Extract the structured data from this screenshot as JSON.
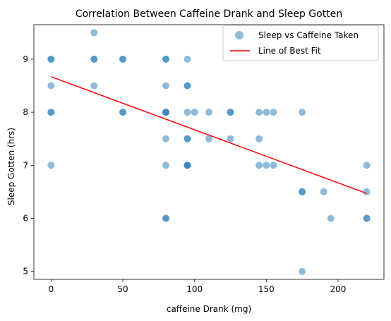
{
  "chart_data": {
    "type": "scatter",
    "title": "Correlation Between Caffeine Drank and Sleep Gotten",
    "xlabel": "caffeine Drank (mg)",
    "ylabel": "Sleep Gotten (hrs)",
    "xlim": [
      -12,
      232
    ],
    "ylim": [
      4.85,
      9.65
    ],
    "xticks": [
      0,
      50,
      100,
      150,
      200
    ],
    "yticks": [
      5,
      6,
      7,
      8,
      9
    ],
    "grid": false,
    "legend_position": "top-right",
    "series": [
      {
        "name": "Sleep vs Caffeine Taken",
        "kind": "scatter",
        "color": "#1f77b4",
        "opacity": 0.5,
        "points": [
          {
            "x": 0,
            "y": 9
          },
          {
            "x": 0,
            "y": 9
          },
          {
            "x": 0,
            "y": 8.5
          },
          {
            "x": 0,
            "y": 8
          },
          {
            "x": 0,
            "y": 8
          },
          {
            "x": 0,
            "y": 7
          },
          {
            "x": 30,
            "y": 9.5
          },
          {
            "x": 30,
            "y": 9
          },
          {
            "x": 30,
            "y": 9
          },
          {
            "x": 30,
            "y": 8.5
          },
          {
            "x": 50,
            "y": 9
          },
          {
            "x": 50,
            "y": 9
          },
          {
            "x": 50,
            "y": 8
          },
          {
            "x": 50,
            "y": 8
          },
          {
            "x": 80,
            "y": 9
          },
          {
            "x": 80,
            "y": 9
          },
          {
            "x": 80,
            "y": 8.5
          },
          {
            "x": 80,
            "y": 8
          },
          {
            "x": 80,
            "y": 8
          },
          {
            "x": 80,
            "y": 8
          },
          {
            "x": 80,
            "y": 7.5
          },
          {
            "x": 80,
            "y": 7
          },
          {
            "x": 80,
            "y": 6
          },
          {
            "x": 80,
            "y": 6
          },
          {
            "x": 95,
            "y": 9
          },
          {
            "x": 95,
            "y": 8.5
          },
          {
            "x": 95,
            "y": 8.5
          },
          {
            "x": 95,
            "y": 8
          },
          {
            "x": 95,
            "y": 7.5
          },
          {
            "x": 95,
            "y": 7.5
          },
          {
            "x": 95,
            "y": 7
          },
          {
            "x": 95,
            "y": 7
          },
          {
            "x": 95,
            "y": 7
          },
          {
            "x": 100,
            "y": 8
          },
          {
            "x": 110,
            "y": 8
          },
          {
            "x": 110,
            "y": 7.5
          },
          {
            "x": 125,
            "y": 8
          },
          {
            "x": 125,
            "y": 8
          },
          {
            "x": 125,
            "y": 7.5
          },
          {
            "x": 145,
            "y": 8
          },
          {
            "x": 145,
            "y": 7.5
          },
          {
            "x": 145,
            "y": 7
          },
          {
            "x": 150,
            "y": 8
          },
          {
            "x": 150,
            "y": 7
          },
          {
            "x": 155,
            "y": 8
          },
          {
            "x": 155,
            "y": 7
          },
          {
            "x": 175,
            "y": 8
          },
          {
            "x": 175,
            "y": 6.5
          },
          {
            "x": 175,
            "y": 6.5
          },
          {
            "x": 175,
            "y": 5
          },
          {
            "x": 190,
            "y": 6.5
          },
          {
            "x": 195,
            "y": 6
          },
          {
            "x": 220,
            "y": 7
          },
          {
            "x": 220,
            "y": 6.5
          },
          {
            "x": 220,
            "y": 6
          },
          {
            "x": 220,
            "y": 6
          }
        ]
      },
      {
        "name": "Line of Best Fit",
        "kind": "line",
        "color": "#ff0000",
        "x": [
          0,
          220
        ],
        "y": [
          8.67,
          6.47
        ]
      }
    ]
  }
}
